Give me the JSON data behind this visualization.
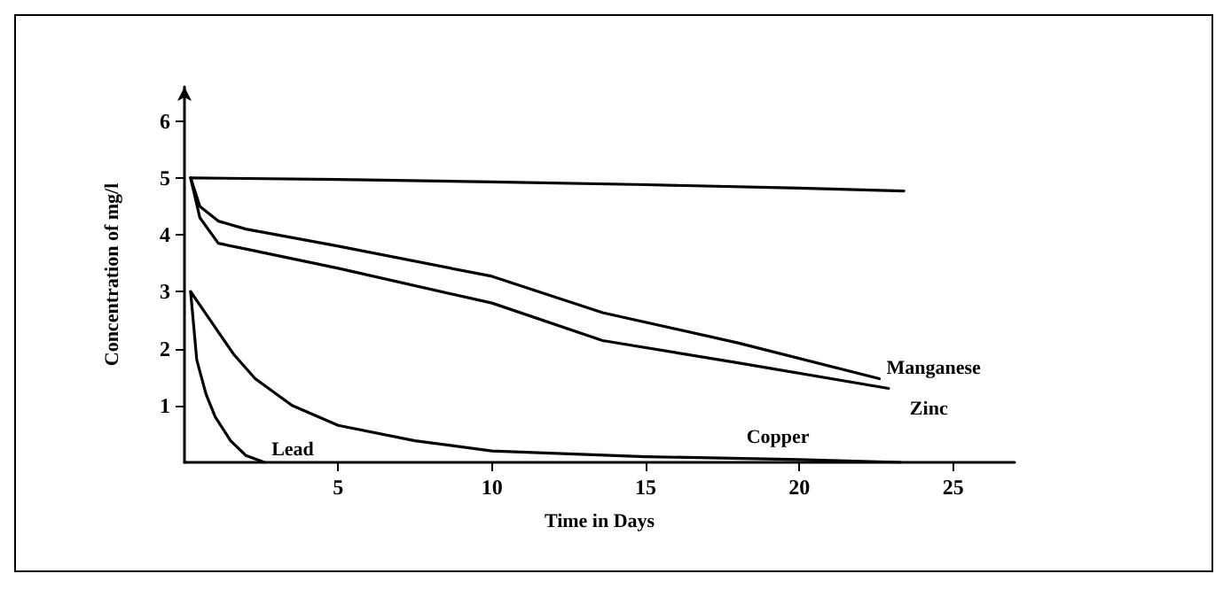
{
  "chart_data": {
    "type": "line",
    "xlabel": "Time in Days",
    "ylabel": "Concentration of mg/l",
    "xlim": [
      0,
      27
    ],
    "ylim": [
      0,
      6.6
    ],
    "xticks": [
      5,
      10,
      15,
      20,
      25
    ],
    "yticks": [
      1,
      2,
      3,
      4,
      5,
      6
    ],
    "grid": false,
    "legend": false,
    "marker": "none",
    "line_style": "solid",
    "series": [
      {
        "color": "#000000",
        "x": [
          0.2,
          5,
          10,
          15,
          20,
          23.4
        ],
        "values": [
          5.0,
          4.97,
          4.93,
          4.88,
          4.82,
          4.77
        ]
      },
      {
        "name": "Manganese",
        "color": "#000000",
        "x": [
          0.2,
          0.5,
          1.1,
          2,
          5,
          10,
          13.6,
          18,
          22.6
        ],
        "values": [
          5.0,
          4.5,
          4.24,
          4.1,
          3.8,
          3.27,
          2.63,
          2.1,
          1.47
        ]
      },
      {
        "name": "Zinc",
        "color": "#000000",
        "x": [
          0.2,
          0.5,
          1.1,
          2,
          5,
          10,
          13.6,
          18,
          22.9
        ],
        "values": [
          5.0,
          4.3,
          3.85,
          3.75,
          3.41,
          2.8,
          2.14,
          1.75,
          1.3
        ]
      },
      {
        "name": "Copper",
        "color": "#000000",
        "x": [
          0.2,
          0.9,
          1.6,
          2.3,
          3.5,
          5,
          7.5,
          10,
          15,
          20,
          23.3
        ],
        "values": [
          3.0,
          2.45,
          1.9,
          1.47,
          1.0,
          0.65,
          0.38,
          0.2,
          0.1,
          0.05,
          0.0
        ]
      },
      {
        "name": "Lead",
        "color": "#000000",
        "x": [
          0.2,
          0.4,
          0.7,
          1.0,
          1.5,
          2.0,
          2.6
        ],
        "values": [
          3.0,
          1.8,
          1.2,
          0.8,
          0.38,
          0.12,
          0.0
        ]
      }
    ]
  }
}
